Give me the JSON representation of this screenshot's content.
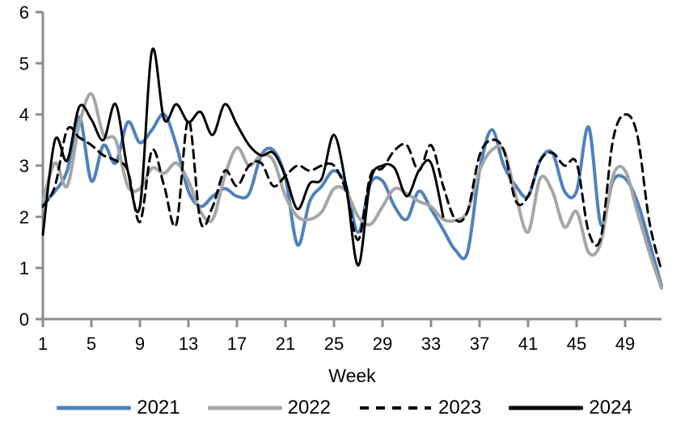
{
  "chart_data": {
    "type": "line",
    "title": "",
    "xlabel": "Week",
    "ylabel": "",
    "xlim": [
      1,
      52
    ],
    "ylim": [
      0,
      6
    ],
    "grid": false,
    "legend_position": "bottom",
    "axis_color": "#8c8c8c",
    "y_ticks": [
      "0",
      "1",
      "2",
      "3",
      "4",
      "5",
      "6"
    ],
    "x_ticks": [
      "1",
      "5",
      "9",
      "13",
      "17",
      "21",
      "25",
      "29",
      "33",
      "37",
      "41",
      "45",
      "49"
    ],
    "x_tick_weeks": [
      1,
      5,
      9,
      13,
      17,
      21,
      25,
      29,
      33,
      37,
      41,
      45,
      49
    ],
    "series": [
      {
        "name": "2021",
        "color": "#4F81BD",
        "style": "solid",
        "width": 4,
        "start_week": 1,
        "values": [
          2.25,
          2.5,
          2.9,
          3.95,
          2.7,
          3.4,
          3.05,
          3.85,
          3.45,
          3.7,
          4.0,
          3.4,
          2.5,
          2.2,
          2.4,
          2.55,
          2.4,
          2.45,
          3.2,
          3.3,
          2.75,
          1.45,
          2.3,
          2.6,
          2.9,
          2.6,
          1.7,
          2.65,
          2.7,
          2.2,
          1.95,
          2.5,
          2.15,
          1.75,
          1.35,
          1.3,
          2.9,
          3.7,
          3.0,
          2.6,
          2.4,
          3.1,
          3.25,
          2.5,
          2.5,
          3.75,
          1.85,
          2.7,
          2.75,
          2.3,
          1.5,
          0.65
        ]
      },
      {
        "name": "2022",
        "color": "#A6A6A6",
        "style": "solid",
        "width": 4,
        "start_week": 1,
        "values": [
          2.3,
          3.05,
          2.6,
          3.8,
          4.4,
          3.6,
          3.5,
          2.6,
          2.55,
          2.95,
          2.85,
          3.05,
          2.7,
          2.1,
          1.95,
          2.8,
          3.35,
          3.0,
          3.2,
          3.1,
          2.4,
          2.0,
          1.95,
          2.1,
          2.55,
          2.5,
          2.0,
          1.85,
          2.2,
          2.55,
          2.45,
          2.3,
          2.2,
          1.95,
          1.93,
          2.1,
          2.9,
          3.3,
          3.3,
          2.4,
          1.7,
          2.75,
          2.5,
          1.8,
          2.1,
          1.3,
          1.5,
          2.8,
          2.9,
          2.1,
          1.3,
          0.6
        ]
      },
      {
        "name": "2023",
        "color": "#000000",
        "style": "dashed",
        "width": 3,
        "start_week": 1,
        "values": [
          2.2,
          2.6,
          3.7,
          3.55,
          3.4,
          3.2,
          3.1,
          2.9,
          1.9,
          3.3,
          2.6,
          1.85,
          3.9,
          1.9,
          2.2,
          2.9,
          2.6,
          3.0,
          3.05,
          2.6,
          2.8,
          3.0,
          2.9,
          3.0,
          3.0,
          2.5,
          1.55,
          2.8,
          2.95,
          3.3,
          3.4,
          2.9,
          3.4,
          2.6,
          1.95,
          2.1,
          3.2,
          3.5,
          3.3,
          2.3,
          2.4,
          3.1,
          3.25,
          3.0,
          3.05,
          1.7,
          1.6,
          3.5,
          4.0,
          3.6,
          1.9,
          0.95
        ]
      },
      {
        "name": "2024",
        "color": "#000000",
        "style": "solid",
        "width": 3,
        "start_week": 1,
        "values": [
          1.65,
          3.5,
          3.1,
          4.15,
          3.9,
          3.5,
          4.2,
          2.9,
          2.2,
          5.25,
          3.9,
          4.2,
          3.85,
          4.05,
          3.6,
          4.2,
          3.8,
          3.4,
          3.2,
          3.25,
          2.8,
          2.15,
          2.65,
          2.75,
          3.6,
          2.6,
          1.05,
          2.7,
          3.0,
          2.95,
          2.4,
          2.9,
          3.05,
          2.0
        ]
      }
    ]
  }
}
